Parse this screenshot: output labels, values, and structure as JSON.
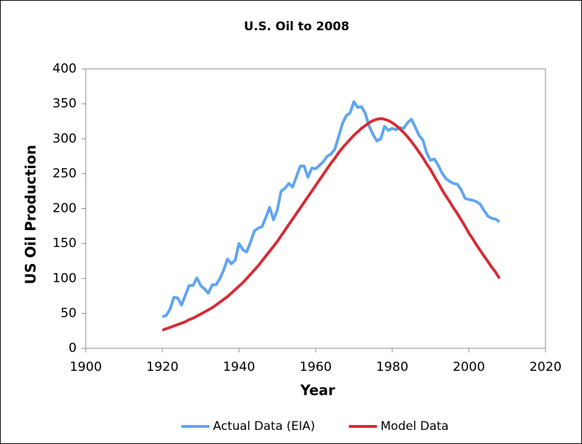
{
  "chart_data": {
    "type": "line",
    "title": "U.S. Oil to 2008",
    "x_label": "Year",
    "y_label": "US Oil Production",
    "x": [
      1920,
      1921,
      1922,
      1923,
      1924,
      1925,
      1926,
      1927,
      1928,
      1929,
      1930,
      1931,
      1932,
      1933,
      1934,
      1935,
      1936,
      1937,
      1938,
      1939,
      1940,
      1941,
      1942,
      1943,
      1944,
      1945,
      1946,
      1947,
      1948,
      1949,
      1950,
      1951,
      1952,
      1953,
      1954,
      1955,
      1956,
      1957,
      1958,
      1959,
      1960,
      1961,
      1962,
      1963,
      1964,
      1965,
      1966,
      1967,
      1968,
      1969,
      1970,
      1971,
      1972,
      1973,
      1974,
      1975,
      1976,
      1977,
      1978,
      1979,
      1980,
      1981,
      1982,
      1983,
      1984,
      1985,
      1986,
      1987,
      1988,
      1989,
      1990,
      1991,
      1992,
      1993,
      1994,
      1995,
      1996,
      1997,
      1998,
      1999,
      2000,
      2001,
      2002,
      2003,
      2004,
      2005,
      2006,
      2007,
      2008
    ],
    "series": [
      {
        "name": "Actual Data (EIA)",
        "color": "#5fa5f0",
        "values": [
          45,
          47,
          56,
          73,
          72,
          62,
          76,
          90,
          90,
          101,
          90,
          85,
          79,
          91,
          91,
          100,
          112,
          128,
          121,
          126,
          150,
          141,
          138,
          152,
          168,
          172,
          174,
          187,
          202,
          184,
          198,
          225,
          229,
          236,
          231,
          246,
          261,
          261,
          245,
          258,
          257,
          262,
          267,
          275,
          278,
          285,
          303,
          322,
          333,
          337,
          353,
          345,
          346,
          336,
          318,
          306,
          297,
          300,
          318,
          312,
          315,
          313,
          316,
          315,
          323,
          328,
          317,
          305,
          298,
          280,
          269,
          271,
          262,
          251,
          243,
          239,
          236,
          235,
          227,
          215,
          213,
          212,
          210,
          206,
          197,
          189,
          186,
          185,
          181
        ]
      },
      {
        "name": "Model Data",
        "color": "#d62b35",
        "values": [
          26,
          28,
          30,
          32,
          34,
          36,
          38,
          41,
          43,
          46,
          49,
          52,
          55,
          58,
          62,
          66,
          70,
          74,
          79,
          84,
          89,
          94,
          100,
          106,
          112,
          118,
          125,
          132,
          139,
          146,
          153,
          161,
          169,
          177,
          185,
          193,
          201,
          209,
          217,
          225,
          233,
          241,
          249,
          257,
          265,
          272,
          280,
          287,
          293,
          299,
          305,
          310,
          315,
          319,
          323,
          326,
          328,
          329,
          328,
          326,
          323,
          319,
          314,
          309,
          303,
          296,
          289,
          281,
          273,
          264,
          256,
          246,
          237,
          227,
          218,
          210,
          201,
          193,
          184,
          175,
          165,
          157,
          148,
          140,
          132,
          124,
          116,
          109,
          100
        ]
      }
    ],
    "xlim": [
      1900,
      2020
    ],
    "xticks": [
      1900,
      1920,
      1940,
      1960,
      1980,
      2000,
      2020
    ],
    "ylim": [
      0,
      400
    ],
    "yticks": [
      0,
      50,
      100,
      150,
      200,
      250,
      300,
      350,
      400
    ],
    "legend": "bottom"
  }
}
